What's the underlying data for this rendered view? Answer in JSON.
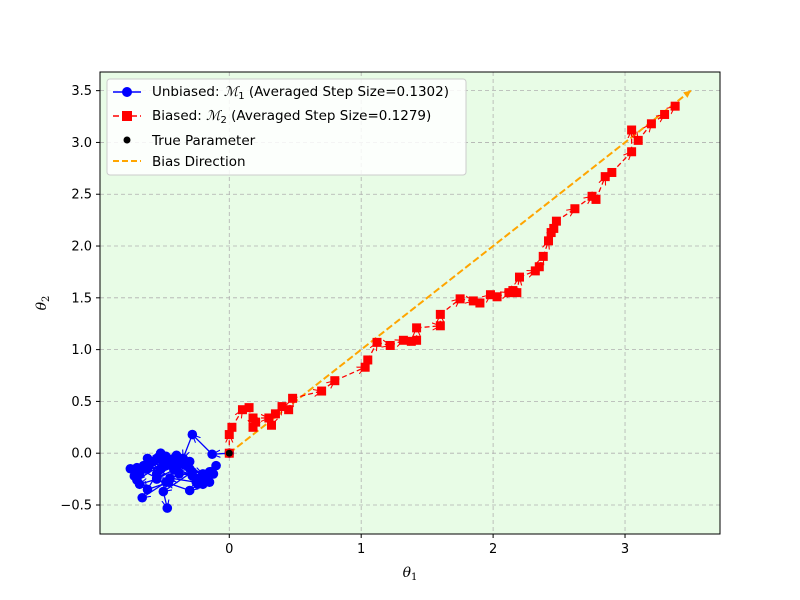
{
  "chart_data": {
    "type": "line",
    "xlabel": "θ1",
    "ylabel": "θ2",
    "xlim": [
      -0.98,
      3.72
    ],
    "ylim": [
      -0.78,
      3.68
    ],
    "x_ticks": [
      {
        "value": 0,
        "label": "0"
      },
      {
        "value": 1,
        "label": "1"
      },
      {
        "value": 2,
        "label": "2"
      },
      {
        "value": 3,
        "label": "3"
      }
    ],
    "y_ticks": [
      {
        "value": -0.5,
        "label": "−0.5"
      },
      {
        "value": 0.0,
        "label": "0.0"
      },
      {
        "value": 0.5,
        "label": "0.5"
      },
      {
        "value": 1.0,
        "label": "1.0"
      },
      {
        "value": 1.5,
        "label": "1.5"
      },
      {
        "value": 2.0,
        "label": "2.0"
      },
      {
        "value": 2.5,
        "label": "2.5"
      },
      {
        "value": 3.0,
        "label": "3.0"
      },
      {
        "value": 3.5,
        "label": "3.5"
      }
    ],
    "grid": true,
    "legend_position": "top-left",
    "background_color": "#e8fce6",
    "series": [
      {
        "name": "Unbiased: ℳ1 (Averaged Step Size=0.1302)",
        "legend_main": "Unbiased: ",
        "legend_m": "ℳ",
        "legend_sub": "1",
        "legend_rest": " (Averaged Step Size=0.1302)",
        "color": "#0000ff",
        "marker": "circle",
        "line": "solid",
        "x": [
          0.0,
          -0.13,
          -0.28,
          -0.35,
          -0.48,
          -0.55,
          -0.62,
          -0.5,
          -0.7,
          -0.6,
          -0.52,
          -0.45,
          -0.4,
          -0.55,
          -0.68,
          -0.65,
          -0.72,
          -0.58,
          -0.3,
          -0.2,
          -0.35,
          -0.48,
          -0.62,
          -0.7,
          -0.5,
          -0.4,
          -0.55,
          -0.42,
          -0.28,
          -0.15,
          -0.1,
          -0.25,
          -0.45,
          -0.6,
          -0.68,
          -0.52,
          -0.38,
          -0.2,
          -0.12,
          -0.3,
          -0.48,
          -0.66,
          -0.5,
          -0.35,
          -0.22,
          -0.4,
          -0.55,
          -0.7,
          -0.75,
          -0.62,
          -0.46,
          -0.3,
          -0.42,
          -0.55,
          -0.38,
          -0.18,
          -0.24,
          -0.15,
          -0.28,
          -0.5,
          -0.47
        ],
        "y": [
          0.0,
          -0.01,
          0.18,
          -0.05,
          -0.12,
          -0.2,
          -0.05,
          -0.03,
          -0.18,
          -0.1,
          -0.15,
          -0.08,
          -0.02,
          -0.25,
          -0.3,
          -0.12,
          -0.22,
          -0.08,
          -0.15,
          -0.2,
          -0.1,
          -0.03,
          -0.15,
          -0.26,
          -0.1,
          -0.12,
          -0.2,
          -0.05,
          -0.22,
          -0.18,
          -0.12,
          -0.28,
          -0.24,
          -0.08,
          -0.2,
          0.0,
          -0.1,
          -0.3,
          -0.2,
          -0.36,
          -0.28,
          -0.43,
          -0.1,
          -0.05,
          -0.25,
          -0.15,
          -0.24,
          -0.14,
          -0.15,
          -0.35,
          -0.28,
          -0.08,
          -0.16,
          -0.05,
          -0.2,
          -0.22,
          -0.3,
          -0.28,
          -0.18,
          -0.37,
          -0.53
        ]
      },
      {
        "name": "Biased: ℳ2 (Averaged Step Size=0.1279)",
        "legend_main": "Biased: ",
        "legend_m": "ℳ",
        "legend_sub": "2",
        "legend_rest": " (Averaged Step Size=0.1279)",
        "color": "#ff0000",
        "marker": "square",
        "line": "dashed",
        "x": [
          0.0,
          0.0,
          0.02,
          0.1,
          0.15,
          0.18,
          0.2,
          0.18,
          0.3,
          0.35,
          0.32,
          0.4,
          0.45,
          0.48,
          0.7,
          0.8,
          1.03,
          1.05,
          1.12,
          1.22,
          1.32,
          1.38,
          1.42,
          1.42,
          1.6,
          1.6,
          1.75,
          1.85,
          1.9,
          1.98,
          2.03,
          2.12,
          2.15,
          2.18,
          2.2,
          2.32,
          2.35,
          2.38,
          2.42,
          2.44,
          2.46,
          2.48,
          2.62,
          2.75,
          2.78,
          2.85,
          2.9,
          3.05,
          3.05,
          3.1,
          3.2,
          3.3,
          3.38
        ],
        "y": [
          0.0,
          0.18,
          0.25,
          0.42,
          0.44,
          0.25,
          0.3,
          0.34,
          0.34,
          0.38,
          0.27,
          0.45,
          0.42,
          0.53,
          0.6,
          0.7,
          0.83,
          0.9,
          1.07,
          1.04,
          1.09,
          1.08,
          1.09,
          1.21,
          1.23,
          1.34,
          1.49,
          1.47,
          1.45,
          1.53,
          1.51,
          1.55,
          1.57,
          1.55,
          1.7,
          1.76,
          1.8,
          1.9,
          2.05,
          2.13,
          2.17,
          2.24,
          2.36,
          2.48,
          2.45,
          2.67,
          2.71,
          2.91,
          3.12,
          3.02,
          3.18,
          3.27,
          3.35
        ]
      }
    ],
    "true_parameter": {
      "name": "True Parameter",
      "x": 0.0,
      "y": 0.0,
      "color": "#000000"
    },
    "bias_direction": {
      "name": "Bias Direction",
      "x": [
        0.0,
        3.5
      ],
      "y": [
        0.0,
        3.5
      ],
      "color": "#ffa500"
    }
  }
}
